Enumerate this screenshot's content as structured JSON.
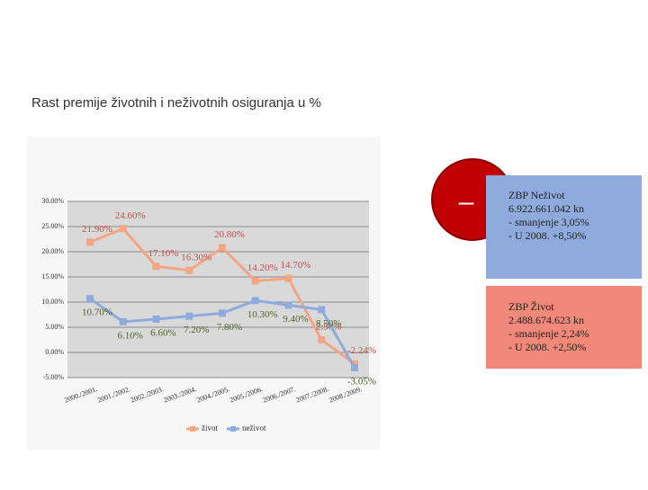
{
  "slide_title": "Rast premije životnih i neživotnih osiguranja u %",
  "circle_text": "–",
  "info_boxes": [
    {
      "lines": [
        "ZBP Neživot",
        "6.922.661.042 kn",
        "- smanjenje 3,05%",
        "- U 2008. +8,50%"
      ],
      "color": "#8faadc"
    },
    {
      "lines": [
        "ZBP Život",
        "2.488.674.623 kn",
        "- smanjenje 2,24%",
        "- U 2008. +2,50%"
      ],
      "color": "#f0897a"
    }
  ],
  "chart_data": {
    "type": "line",
    "categories": [
      "2000./2001.",
      "2001./2002.",
      "2002./2003.",
      "2003./2004.",
      "2004./2005.",
      "2005./2006.",
      "2006./2007.",
      "2007./2008.",
      "2008./2009."
    ],
    "series": [
      {
        "name": "život",
        "color": "#f4a582",
        "values": [
          21.9,
          24.6,
          17.1,
          16.3,
          20.8,
          14.2,
          14.7,
          2.5,
          -2.24
        ],
        "value_labels": [
          "21.90%",
          "24.60%",
          "17.10%",
          "16.30%",
          "20.80%",
          "14.20%",
          "14.70%",
          "2.50%",
          "-2.24%"
        ]
      },
      {
        "name": "neživot",
        "color": "#8faadc",
        "values": [
          10.7,
          6.1,
          6.6,
          7.2,
          7.8,
          10.3,
          9.4,
          8.5,
          -3.05
        ],
        "value_labels": [
          "10.70%",
          "6.10%",
          "6.60%",
          "7.20%",
          "7.80%",
          "10.30%",
          "9.40%",
          "8.50%",
          "-3.05%"
        ]
      }
    ],
    "ylim": [
      -5,
      30
    ],
    "yticks": [
      {
        "value": -5,
        "label": "-5.00%"
      },
      {
        "value": 0,
        "label": "0.00%"
      },
      {
        "value": 5,
        "label": "5.00%"
      },
      {
        "value": 10,
        "label": "10.00%"
      },
      {
        "value": 15,
        "label": "15.00%"
      },
      {
        "value": 20,
        "label": "20.00%"
      },
      {
        "value": 25,
        "label": "25.00%"
      },
      {
        "value": 30,
        "label": "30.00%"
      }
    ],
    "grid": true
  }
}
